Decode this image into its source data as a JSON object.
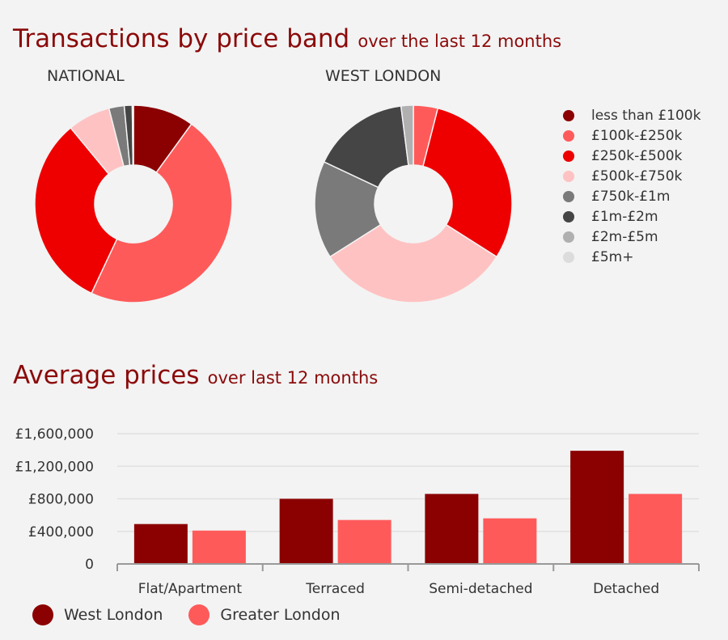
{
  "titles": {
    "transactions_main": "Transactions by price band",
    "transactions_sub": "over the last 12 months",
    "prices_main": "Average prices",
    "prices_sub": "over last 12 months"
  },
  "colors": {
    "title": "#8b0a0a",
    "bands": [
      "#8b0000",
      "#ff5a5a",
      "#ee0000",
      "#ffc2c2",
      "#7a7a7a",
      "#454545",
      "#b0b0b0",
      "#dcdcdc"
    ],
    "west_london": "#8b0000",
    "greater_london": "#ff5a5a",
    "grid": "#e0e0e0",
    "axis": "#999999"
  },
  "chart_data": [
    {
      "type": "pie",
      "title": "NATIONAL",
      "categories": [
        "less than £100k",
        "£100k-£250k",
        "£250k-£500k",
        "£500k-£750k",
        "£750k-£1m",
        "£1m-£2m",
        "£2m-£5m",
        "£5m+"
      ],
      "values": [
        10,
        47,
        32,
        7,
        2.5,
        1.3,
        0.2,
        0
      ],
      "legend": "right"
    },
    {
      "type": "pie",
      "title": "WEST LONDON",
      "categories": [
        "less than £100k",
        "£100k-£250k",
        "£250k-£500k",
        "£500k-£750k",
        "£750k-£1m",
        "£1m-£2m",
        "£2m-£5m",
        "£5m+"
      ],
      "values": [
        0,
        4,
        30,
        32,
        16,
        16,
        2,
        0
      ],
      "legend": "right"
    },
    {
      "type": "bar",
      "title": "Average prices",
      "categories": [
        "Flat/Apartment",
        "Terraced",
        "Semi-detached",
        "Detached"
      ],
      "series": [
        {
          "name": "West London",
          "values": [
            490000,
            800000,
            860000,
            1390000
          ]
        },
        {
          "name": "Greater London",
          "values": [
            410000,
            540000,
            560000,
            860000
          ]
        }
      ],
      "yticks": [
        "0",
        "£400,000",
        "£800,000",
        "£1,200,000",
        "£1,600,000"
      ],
      "ytick_values": [
        0,
        400000,
        800000,
        1200000,
        1600000
      ],
      "ylim": [
        0,
        1600000
      ],
      "grid": true,
      "legend": "bottom-left"
    }
  ]
}
